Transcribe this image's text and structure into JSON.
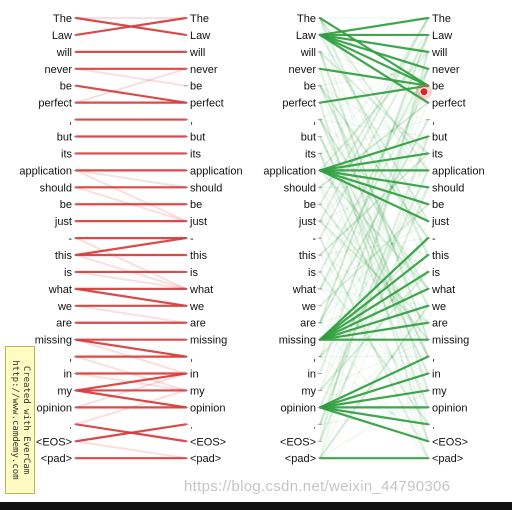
{
  "tokens": [
    "The",
    "Law",
    "will",
    "never",
    "be",
    "perfect",
    ",",
    "but",
    "its",
    "application",
    "should",
    "be",
    "just",
    "-",
    "this",
    "is",
    "what",
    "we",
    "are",
    "missing",
    ",",
    "in",
    "my",
    "opinion",
    ".",
    "<EOS>",
    "<pad>"
  ],
  "panels": [
    {
      "color": "#d93a3a",
      "faint": [
        [
          0,
          0
        ],
        [
          3,
          4
        ],
        [
          5,
          3
        ],
        [
          9,
          12
        ],
        [
          10,
          12
        ],
        [
          9,
          10
        ],
        [
          13,
          16
        ],
        [
          14,
          16
        ],
        [
          15,
          16
        ],
        [
          17,
          18
        ],
        [
          19,
          21
        ],
        [
          20,
          22
        ],
        [
          21,
          22
        ],
        [
          22,
          23
        ],
        [
          23,
          21
        ],
        [
          24,
          22
        ],
        [
          25,
          26
        ]
      ],
      "strong": [
        [
          0,
          1
        ],
        [
          1,
          0
        ],
        [
          2,
          2
        ],
        [
          3,
          3
        ],
        [
          4,
          5
        ],
        [
          5,
          5
        ],
        [
          6,
          6
        ],
        [
          7,
          7
        ],
        [
          8,
          8
        ],
        [
          9,
          9
        ],
        [
          10,
          10
        ],
        [
          11,
          11
        ],
        [
          12,
          12
        ],
        [
          13,
          13
        ],
        [
          14,
          13
        ],
        [
          14,
          14
        ],
        [
          15,
          15
        ],
        [
          16,
          16
        ],
        [
          16,
          17
        ],
        [
          17,
          17
        ],
        [
          18,
          18
        ],
        [
          19,
          19
        ],
        [
          19,
          20
        ],
        [
          20,
          20
        ],
        [
          21,
          21
        ],
        [
          22,
          22
        ],
        [
          22,
          21
        ],
        [
          22,
          23
        ],
        [
          23,
          23
        ],
        [
          24,
          25
        ],
        [
          25,
          24
        ],
        [
          26,
          26
        ]
      ]
    },
    {
      "color": "#2e9e3e",
      "faint": [
        [
          0,
          9
        ],
        [
          0,
          14
        ],
        [
          1,
          12
        ],
        [
          2,
          19
        ],
        [
          3,
          22
        ],
        [
          4,
          17
        ],
        [
          5,
          25
        ],
        [
          6,
          16
        ],
        [
          7,
          20
        ],
        [
          8,
          23
        ],
        [
          9,
          2
        ],
        [
          9,
          16
        ],
        [
          10,
          5
        ],
        [
          11,
          19
        ],
        [
          12,
          0
        ],
        [
          13,
          26
        ],
        [
          14,
          8
        ],
        [
          15,
          24
        ],
        [
          16,
          4
        ],
        [
          17,
          11
        ],
        [
          18,
          1
        ],
        [
          18,
          6
        ],
        [
          20,
          13
        ],
        [
          21,
          3
        ],
        [
          22,
          15
        ],
        [
          23,
          9
        ],
        [
          24,
          7
        ],
        [
          25,
          10
        ],
        [
          25,
          2
        ],
        [
          2,
          8
        ],
        [
          11,
          0
        ],
        [
          4,
          13
        ],
        [
          6,
          20
        ],
        [
          15,
          3
        ],
        [
          7,
          21
        ],
        [
          12,
          18
        ],
        [
          26,
          17
        ],
        [
          13,
          1
        ]
      ],
      "strong": [
        [
          1,
          0
        ],
        [
          1,
          1
        ],
        [
          1,
          2
        ],
        [
          1,
          3
        ],
        [
          1,
          4
        ],
        [
          1,
          5
        ],
        [
          9,
          7
        ],
        [
          9,
          8
        ],
        [
          9,
          9
        ],
        [
          9,
          10
        ],
        [
          9,
          11
        ],
        [
          9,
          12
        ],
        [
          19,
          13
        ],
        [
          19,
          14
        ],
        [
          19,
          15
        ],
        [
          19,
          16
        ],
        [
          19,
          17
        ],
        [
          19,
          18
        ],
        [
          19,
          19
        ],
        [
          23,
          20
        ],
        [
          23,
          21
        ],
        [
          23,
          22
        ],
        [
          23,
          23
        ],
        [
          23,
          24
        ],
        [
          23,
          25
        ],
        [
          26,
          26
        ],
        [
          0,
          4
        ],
        [
          3,
          4
        ],
        [
          5,
          4
        ]
      ],
      "marker": 4
    }
  ],
  "watermark": "https://blog.csdn.net/weixin_44790306",
  "evercam": {
    "line1": "Created with EverCam",
    "brand": "EverCam",
    "line2": "http://www.camdemy.com"
  }
}
